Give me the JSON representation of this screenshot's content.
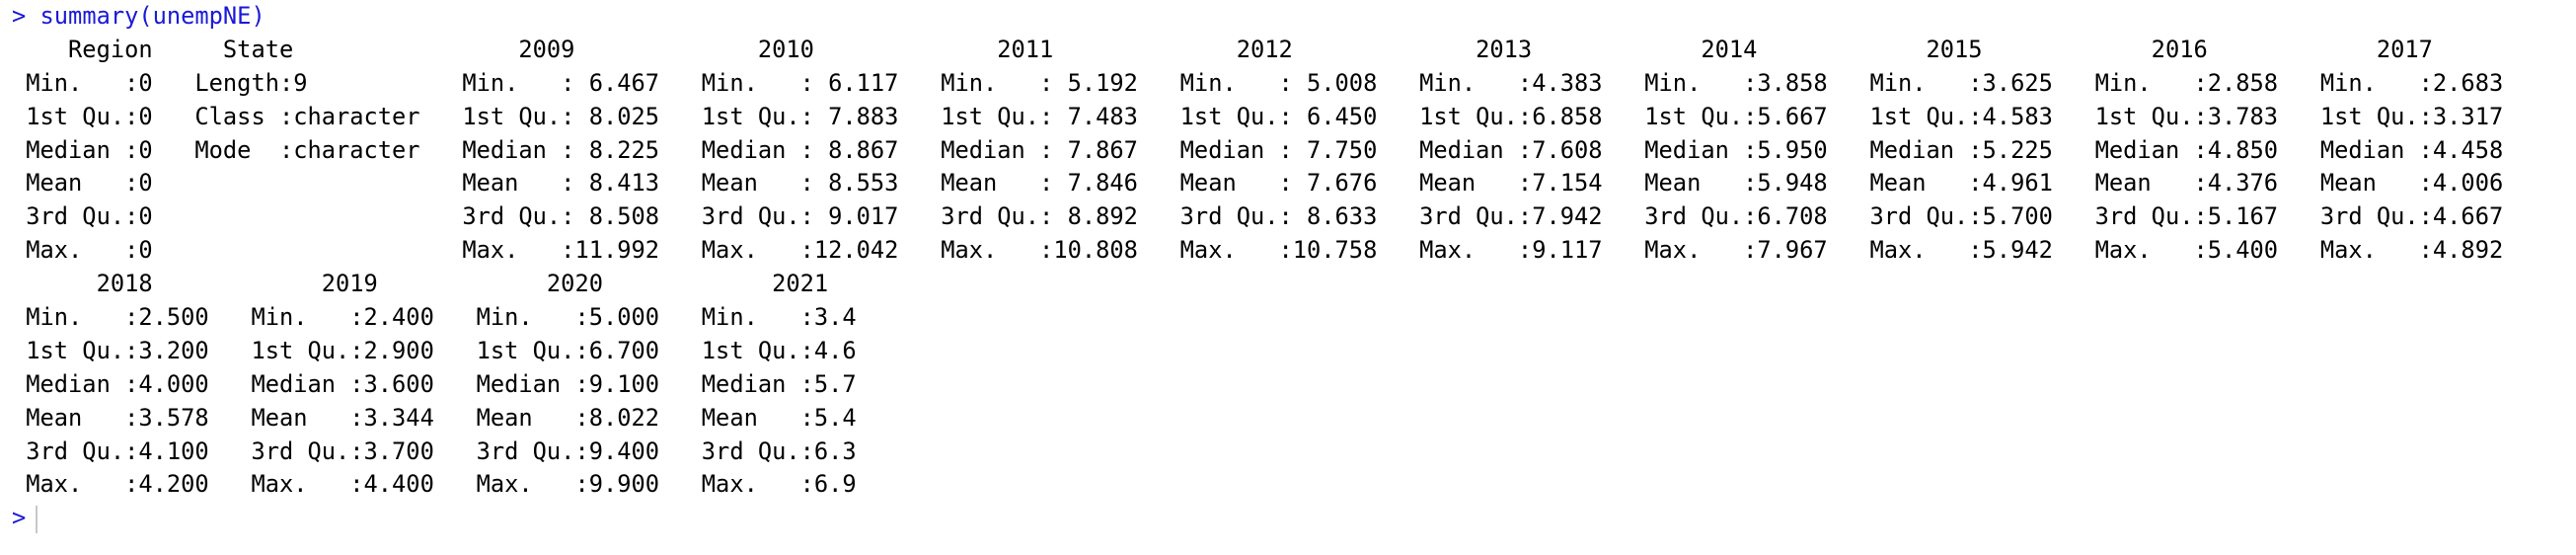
{
  "console": {
    "prompt": ">",
    "command": "summary(unempNE)",
    "output_blocks": [
      {
        "header": "    Region     State                2009             2010             2011             2012             2013            2014            2015            2016            2017      ",
        "rows": [
          " Min.   :0   Length:9           Min.   : 6.467   Min.   : 6.117   Min.   : 5.192   Min.   : 5.008   Min.   :4.383   Min.   :3.858   Min.   :3.625   Min.   :2.858   Min.   :2.683  ",
          " 1st Qu.:0   Class :character   1st Qu.: 8.025   1st Qu.: 7.883   1st Qu.: 7.483   1st Qu.: 6.450   1st Qu.:6.858   1st Qu.:5.667   1st Qu.:4.583   1st Qu.:3.783   1st Qu.:3.317  ",
          " Median :0   Mode  :character   Median : 8.225   Median : 8.867   Median : 7.867   Median : 7.750   Median :7.608   Median :5.950   Median :5.225   Median :4.850   Median :4.458  ",
          " Mean   :0                      Mean   : 8.413   Mean   : 8.553   Mean   : 7.846   Mean   : 7.676   Mean   :7.154   Mean   :5.948   Mean   :4.961   Mean   :4.376   Mean   :4.006  ",
          " 3rd Qu.:0                      3rd Qu.: 8.508   3rd Qu.: 9.017   3rd Qu.: 8.892   3rd Qu.: 8.633   3rd Qu.:7.942   3rd Qu.:6.708   3rd Qu.:5.700   3rd Qu.:5.167   3rd Qu.:4.667  ",
          " Max.   :0                      Max.   :11.992   Max.   :12.042   Max.   :10.808   Max.   :10.758   Max.   :9.117   Max.   :7.967   Max.   :5.942   Max.   :5.400   Max.   :4.892  "
        ]
      },
      {
        "header": "      2018            2019            2020            2021    ",
        "rows": [
          " Min.   :2.500   Min.   :2.400   Min.   :5.000   Min.   :3.4  ",
          " 1st Qu.:3.200   1st Qu.:2.900   1st Qu.:6.700   1st Qu.:4.6  ",
          " Median :4.000   Median :3.600   Median :9.100   Median :5.7  ",
          " Mean   :3.578   Mean   :3.344   Mean   :8.022   Mean   :5.4  ",
          " 3rd Qu.:4.100   3rd Qu.:3.700   3rd Qu.:9.400   3rd Qu.:6.3  ",
          " Max.   :4.200   Max.   :4.400   Max.   :9.900   Max.   :6.9  "
        ]
      }
    ],
    "final_prompt": ">"
  }
}
